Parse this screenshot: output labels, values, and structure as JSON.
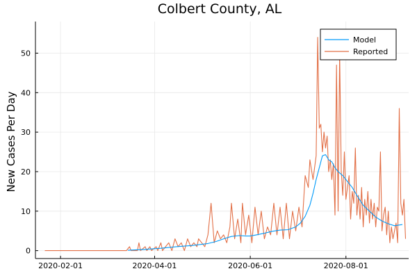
{
  "chart_data": {
    "type": "line",
    "title": "Colbert County, AL",
    "xlabel": "",
    "ylabel": "New Cases Per Day",
    "x_type": "date",
    "xlim": [
      "2020-01-16",
      "2020-09-10"
    ],
    "ylim": [
      -2,
      58
    ],
    "x_ticks": [
      "2020-02-01",
      "2020-04-01",
      "2020-06-01",
      "2020-08-01"
    ],
    "y_ticks": [
      0,
      10,
      20,
      30,
      40,
      50
    ],
    "grid": true,
    "legend_position": "top-right",
    "series": [
      {
        "name": "Model",
        "color": "#009af9",
        "points": [
          [
            "2020-03-15",
            0.1
          ],
          [
            "2020-03-25",
            0.3
          ],
          [
            "2020-04-05",
            0.6
          ],
          [
            "2020-04-15",
            1.0
          ],
          [
            "2020-04-25",
            1.3
          ],
          [
            "2020-05-05",
            1.8
          ],
          [
            "2020-05-10",
            2.3
          ],
          [
            "2020-05-15",
            3.0
          ],
          [
            "2020-05-20",
            3.6
          ],
          [
            "2020-05-25",
            3.8
          ],
          [
            "2020-05-29",
            3.7
          ],
          [
            "2020-06-01",
            3.7
          ],
          [
            "2020-06-05",
            4.0
          ],
          [
            "2020-06-10",
            4.4
          ],
          [
            "2020-06-15",
            4.9
          ],
          [
            "2020-06-20",
            5.2
          ],
          [
            "2020-06-25",
            5.3
          ],
          [
            "2020-06-30",
            6.0
          ],
          [
            "2020-07-03",
            7.0
          ],
          [
            "2020-07-06",
            8.7
          ],
          [
            "2020-07-09",
            11.5
          ],
          [
            "2020-07-11",
            14.5
          ],
          [
            "2020-07-13",
            18.0
          ],
          [
            "2020-07-15",
            21.0
          ],
          [
            "2020-07-17",
            24.0
          ],
          [
            "2020-07-19",
            24.3
          ],
          [
            "2020-07-21",
            23.0
          ],
          [
            "2020-07-23",
            22.5
          ],
          [
            "2020-07-25",
            21.0
          ],
          [
            "2020-07-27",
            20.0
          ],
          [
            "2020-07-30",
            19.0
          ],
          [
            "2020-08-02",
            17.5
          ],
          [
            "2020-08-05",
            16.0
          ],
          [
            "2020-08-08",
            14.0
          ],
          [
            "2020-08-12",
            11.5
          ],
          [
            "2020-08-16",
            10.0
          ],
          [
            "2020-08-20",
            8.5
          ],
          [
            "2020-08-24",
            7.5
          ],
          [
            "2020-08-28",
            6.8
          ],
          [
            "2020-09-01",
            6.3
          ],
          [
            "2020-09-06",
            6.6
          ]
        ]
      },
      {
        "name": "Reported",
        "color": "#e26f46",
        "points": [
          [
            "2020-01-22",
            0
          ],
          [
            "2020-03-14",
            0
          ],
          [
            "2020-03-16",
            1
          ],
          [
            "2020-03-17",
            0
          ],
          [
            "2020-03-21",
            0
          ],
          [
            "2020-03-22",
            2
          ],
          [
            "2020-03-23",
            0
          ],
          [
            "2020-03-26",
            1
          ],
          [
            "2020-03-27",
            0
          ],
          [
            "2020-03-29",
            1
          ],
          [
            "2020-03-30",
            0
          ],
          [
            "2020-04-02",
            1
          ],
          [
            "2020-04-03",
            0
          ],
          [
            "2020-04-05",
            2
          ],
          [
            "2020-04-06",
            0
          ],
          [
            "2020-04-08",
            1
          ],
          [
            "2020-04-10",
            2
          ],
          [
            "2020-04-12",
            0
          ],
          [
            "2020-04-14",
            3
          ],
          [
            "2020-04-16",
            1
          ],
          [
            "2020-04-18",
            2
          ],
          [
            "2020-04-20",
            0
          ],
          [
            "2020-04-22",
            3
          ],
          [
            "2020-04-24",
            1
          ],
          [
            "2020-04-26",
            2
          ],
          [
            "2020-04-28",
            1
          ],
          [
            "2020-04-29",
            3
          ],
          [
            "2020-05-01",
            2
          ],
          [
            "2020-05-03",
            1
          ],
          [
            "2020-05-05",
            4
          ],
          [
            "2020-05-07",
            12
          ],
          [
            "2020-05-09",
            2
          ],
          [
            "2020-05-11",
            5
          ],
          [
            "2020-05-13",
            3
          ],
          [
            "2020-05-15",
            4
          ],
          [
            "2020-05-17",
            2
          ],
          [
            "2020-05-19",
            6
          ],
          [
            "2020-05-20",
            12
          ],
          [
            "2020-05-22",
            3
          ],
          [
            "2020-05-24",
            8
          ],
          [
            "2020-05-26",
            2
          ],
          [
            "2020-05-27",
            12
          ],
          [
            "2020-05-29",
            4
          ],
          [
            "2020-05-31",
            9
          ],
          [
            "2020-06-02",
            2
          ],
          [
            "2020-06-04",
            11
          ],
          [
            "2020-06-06",
            4
          ],
          [
            "2020-06-08",
            10
          ],
          [
            "2020-06-10",
            3
          ],
          [
            "2020-06-12",
            6
          ],
          [
            "2020-06-14",
            4
          ],
          [
            "2020-06-16",
            12
          ],
          [
            "2020-06-18",
            4
          ],
          [
            "2020-06-20",
            11
          ],
          [
            "2020-06-22",
            3
          ],
          [
            "2020-06-24",
            12
          ],
          [
            "2020-06-26",
            3
          ],
          [
            "2020-06-28",
            10
          ],
          [
            "2020-06-30",
            5
          ],
          [
            "2020-07-02",
            11
          ],
          [
            "2020-07-04",
            6
          ],
          [
            "2020-07-06",
            19
          ],
          [
            "2020-07-08",
            16
          ],
          [
            "2020-07-09",
            23
          ],
          [
            "2020-07-11",
            18
          ],
          [
            "2020-07-13",
            24
          ],
          [
            "2020-07-14",
            54
          ],
          [
            "2020-07-15",
            31
          ],
          [
            "2020-07-16",
            32
          ],
          [
            "2020-07-17",
            25
          ],
          [
            "2020-07-18",
            30
          ],
          [
            "2020-07-19",
            26
          ],
          [
            "2020-07-20",
            29
          ],
          [
            "2020-07-21",
            20
          ],
          [
            "2020-07-22",
            23
          ],
          [
            "2020-07-23",
            18
          ],
          [
            "2020-07-24",
            22
          ],
          [
            "2020-07-25",
            9
          ],
          [
            "2020-07-26",
            47
          ],
          [
            "2020-07-27",
            10
          ],
          [
            "2020-07-28",
            50
          ],
          [
            "2020-07-29",
            20
          ],
          [
            "2020-07-30",
            14
          ],
          [
            "2020-07-31",
            25
          ],
          [
            "2020-08-01",
            13
          ],
          [
            "2020-08-03",
            19
          ],
          [
            "2020-08-04",
            8
          ],
          [
            "2020-08-05",
            15
          ],
          [
            "2020-08-06",
            12
          ],
          [
            "2020-08-07",
            26
          ],
          [
            "2020-08-08",
            9
          ],
          [
            "2020-08-09",
            14
          ],
          [
            "2020-08-10",
            8
          ],
          [
            "2020-08-11",
            16
          ],
          [
            "2020-08-12",
            6
          ],
          [
            "2020-08-13",
            13
          ],
          [
            "2020-08-14",
            9
          ],
          [
            "2020-08-15",
            15
          ],
          [
            "2020-08-16",
            7
          ],
          [
            "2020-08-17",
            13
          ],
          [
            "2020-08-18",
            8
          ],
          [
            "2020-08-19",
            12
          ],
          [
            "2020-08-20",
            6
          ],
          [
            "2020-08-21",
            11
          ],
          [
            "2020-08-22",
            10
          ],
          [
            "2020-08-23",
            25
          ],
          [
            "2020-08-24",
            5
          ],
          [
            "2020-08-25",
            9
          ],
          [
            "2020-08-26",
            11
          ],
          [
            "2020-08-27",
            4
          ],
          [
            "2020-08-28",
            10
          ],
          [
            "2020-08-29",
            2
          ],
          [
            "2020-08-30",
            6
          ],
          [
            "2020-08-31",
            3
          ],
          [
            "2020-09-02",
            7
          ],
          [
            "2020-09-03",
            2
          ],
          [
            "2020-09-04",
            36
          ],
          [
            "2020-09-05",
            12
          ],
          [
            "2020-09-06",
            9
          ],
          [
            "2020-09-07",
            13
          ],
          [
            "2020-09-08",
            3
          ]
        ]
      }
    ]
  }
}
